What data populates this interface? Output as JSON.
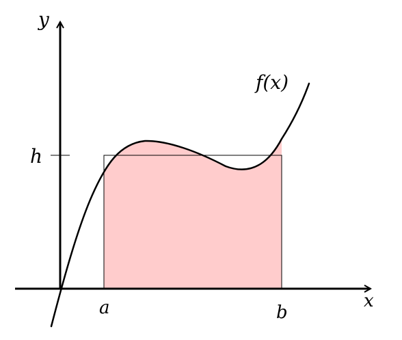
{
  "labels": {
    "y_axis": "y",
    "x_axis": "x",
    "height": "h",
    "lower_bound": "a",
    "upper_bound": "b",
    "function": "f(x)"
  },
  "colors": {
    "fill": "#ffcccc",
    "stroke": "#000000"
  }
}
